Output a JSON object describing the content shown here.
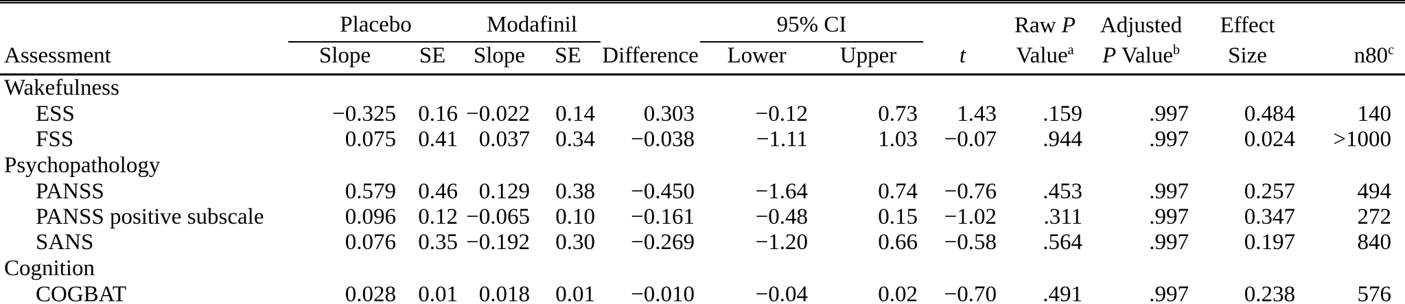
{
  "table": {
    "spanners": {
      "placebo": "Placebo",
      "modafinil": "Modafinil",
      "ci": "95% CI"
    },
    "two_line_headers": {
      "raw_p": {
        "line1_pre": "Raw ",
        "line1_italic": "P",
        "line2": "Value",
        "sup": "a"
      },
      "adjusted": {
        "line1": "Adjusted",
        "line2_italic": "P",
        "line2_rest": " Value",
        "sup": "b"
      },
      "effect": {
        "line1": "Effect",
        "line2": "Size"
      }
    },
    "columns": {
      "assessment": "Assessment",
      "slope_placebo": "Slope",
      "se_placebo": "SE",
      "slope_modafinil": "Slope",
      "se_modafinil": "SE",
      "difference": "Difference",
      "lower": "Lower",
      "upper": "Upper",
      "t_italic": "t",
      "n80_label": "n80",
      "n80_sup": "c"
    },
    "sections": [
      {
        "name": "Wakefulness",
        "rows": [
          {
            "assessment": "ESS",
            "values": [
              "−0.325",
              "0.16",
              "−0.022",
              "0.14",
              "0.303",
              "−0.12",
              "0.73",
              "1.43",
              ".159",
              ".997",
              "0.484",
              "140"
            ]
          },
          {
            "assessment": "FSS",
            "values": [
              "0.075",
              "0.41",
              "0.037",
              "0.34",
              "−0.038",
              "−1.11",
              "1.03",
              "−0.07",
              ".944",
              ".997",
              "0.024",
              ">1000"
            ]
          }
        ]
      },
      {
        "name": "Psychopathology",
        "rows": [
          {
            "assessment": "PANSS",
            "values": [
              "0.579",
              "0.46",
              "0.129",
              "0.38",
              "−0.450",
              "−1.64",
              "0.74",
              "−0.76",
              ".453",
              ".997",
              "0.257",
              "494"
            ]
          },
          {
            "assessment": "PANSS positive subscale",
            "values": [
              "0.096",
              "0.12",
              "−0.065",
              "0.10",
              "−0.161",
              "−0.48",
              "0.15",
              "−1.02",
              ".311",
              ".997",
              "0.347",
              "272"
            ]
          },
          {
            "assessment": "SANS",
            "values": [
              "0.076",
              "0.35",
              "−0.192",
              "0.30",
              "−0.269",
              "−1.20",
              "0.66",
              "−0.58",
              ".564",
              ".997",
              "0.197",
              "840"
            ]
          }
        ]
      },
      {
        "name": "Cognition",
        "rows": [
          {
            "assessment": "COGBAT",
            "values": [
              "0.028",
              "0.01",
              "0.018",
              "0.01",
              "−0.010",
              "−0.04",
              "0.02",
              "−0.70",
              ".491",
              ".997",
              "0.238",
              "576"
            ]
          }
        ]
      }
    ]
  }
}
